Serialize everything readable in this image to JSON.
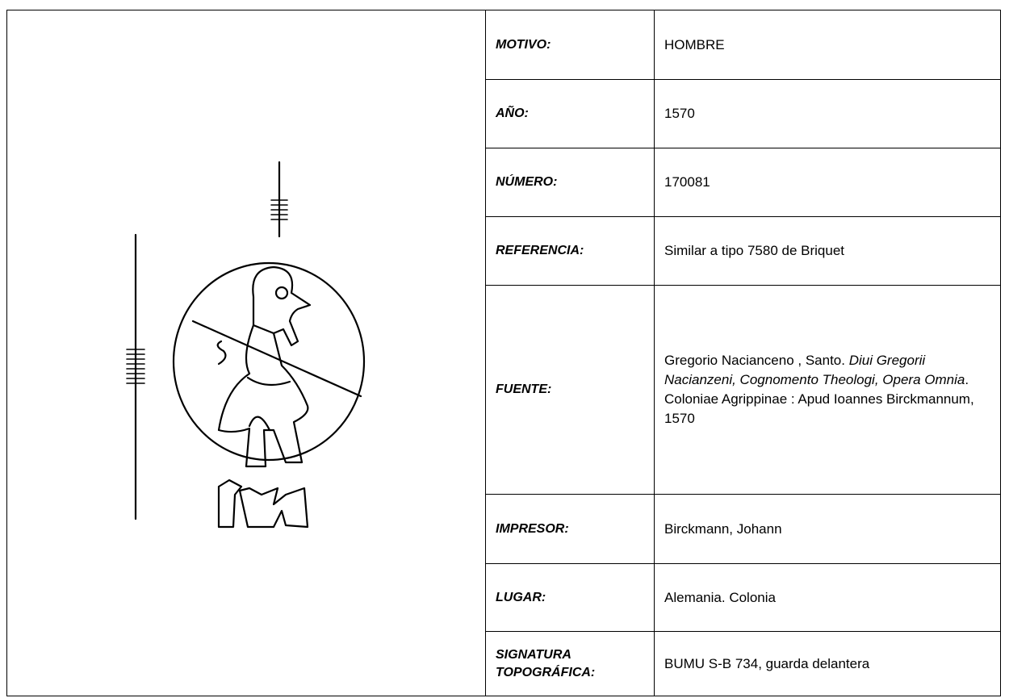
{
  "table": {
    "rows": [
      {
        "label": "MOTIVO:",
        "value": "HOMBRE"
      },
      {
        "label": "AÑO:",
        "value": "1570"
      },
      {
        "label": "NÚMERO:",
        "value": "170081"
      },
      {
        "label": "REFERENCIA:",
        "value": "Similar a tipo 7580 de Briquet"
      },
      {
        "label": "FUENTE:",
        "value": [
          {
            "text": "Gregorio Nacianceno , Santo. "
          },
          {
            "text": "Diui Gregorii Nacianzeni, Cognomento Theologi, Opera Omnia",
            "style": "italic"
          },
          {
            "text": ". Coloniae Agrippinae : Apud Ioannes Birckmannum, 1570"
          }
        ]
      },
      {
        "label": "IMPRESOR:",
        "value": "Birckmann, Johann"
      },
      {
        "label": "LUGAR:",
        "value": "Alemania. Colonia"
      },
      {
        "label": "SIGNATURA TOPOGRÁFICA:",
        "value": "BUMU S-B 734, guarda delantera"
      }
    ]
  }
}
